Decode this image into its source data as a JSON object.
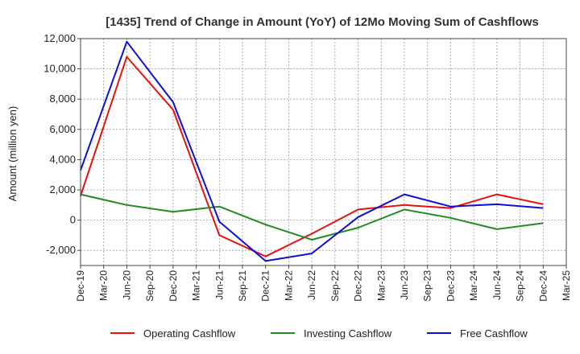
{
  "chart_data": {
    "type": "line",
    "title": "[1435]  Trend of Change in Amount (YoY) of 12Mo Moving Sum of Cashflows",
    "xlabel": "",
    "ylabel": "Amount (million yen)",
    "ylim": [
      -3000,
      12000
    ],
    "yticks": [
      -2000,
      0,
      2000,
      4000,
      6000,
      8000,
      10000,
      12000
    ],
    "ytick_labels": [
      "-2,000",
      "0",
      "2,000",
      "4,000",
      "6,000",
      "8,000",
      "10,000",
      "12,000"
    ],
    "categories": [
      "Dec-19",
      "Mar-20",
      "Jun-20",
      "Sep-20",
      "Dec-20",
      "Mar-21",
      "Jun-21",
      "Sep-21",
      "Dec-21",
      "Mar-22",
      "Jun-22",
      "Sep-22",
      "Dec-22",
      "Mar-23",
      "Jun-23",
      "Sep-23",
      "Dec-23",
      "Mar-24",
      "Jun-24",
      "Sep-24",
      "Dec-24",
      "Mar-25"
    ],
    "grid": true,
    "legend_position": "bottom",
    "series": [
      {
        "name": "Operating Cashflow",
        "color": "#e8110f",
        "x": [
          "Dec-19",
          "Jun-20",
          "Dec-20",
          "Jun-21",
          "Dec-21",
          "Jun-22",
          "Dec-22",
          "Jun-23",
          "Dec-23",
          "Jun-24",
          "Dec-24"
        ],
        "values": [
          1600,
          10800,
          7300,
          -1000,
          -2400,
          -900,
          700,
          1000,
          800,
          1700,
          1050
        ]
      },
      {
        "name": "Investing Cashflow",
        "color": "#238b23",
        "x": [
          "Dec-19",
          "Jun-20",
          "Dec-20",
          "Jun-21",
          "Dec-21",
          "Jun-22",
          "Dec-22",
          "Jun-23",
          "Dec-23",
          "Jun-24",
          "Dec-24"
        ],
        "values": [
          1700,
          1000,
          550,
          900,
          -300,
          -1300,
          -500,
          700,
          150,
          -600,
          -200
        ]
      },
      {
        "name": "Free Cashflow",
        "color": "#0f0fd2",
        "x": [
          "Dec-19",
          "Jun-20",
          "Dec-20",
          "Jun-21",
          "Dec-21",
          "Jun-22",
          "Dec-22",
          "Jun-23",
          "Dec-23",
          "Jun-24",
          "Dec-24"
        ],
        "values": [
          3300,
          11800,
          7800,
          -100,
          -2700,
          -2200,
          200,
          1700,
          900,
          1050,
          800
        ]
      }
    ]
  }
}
